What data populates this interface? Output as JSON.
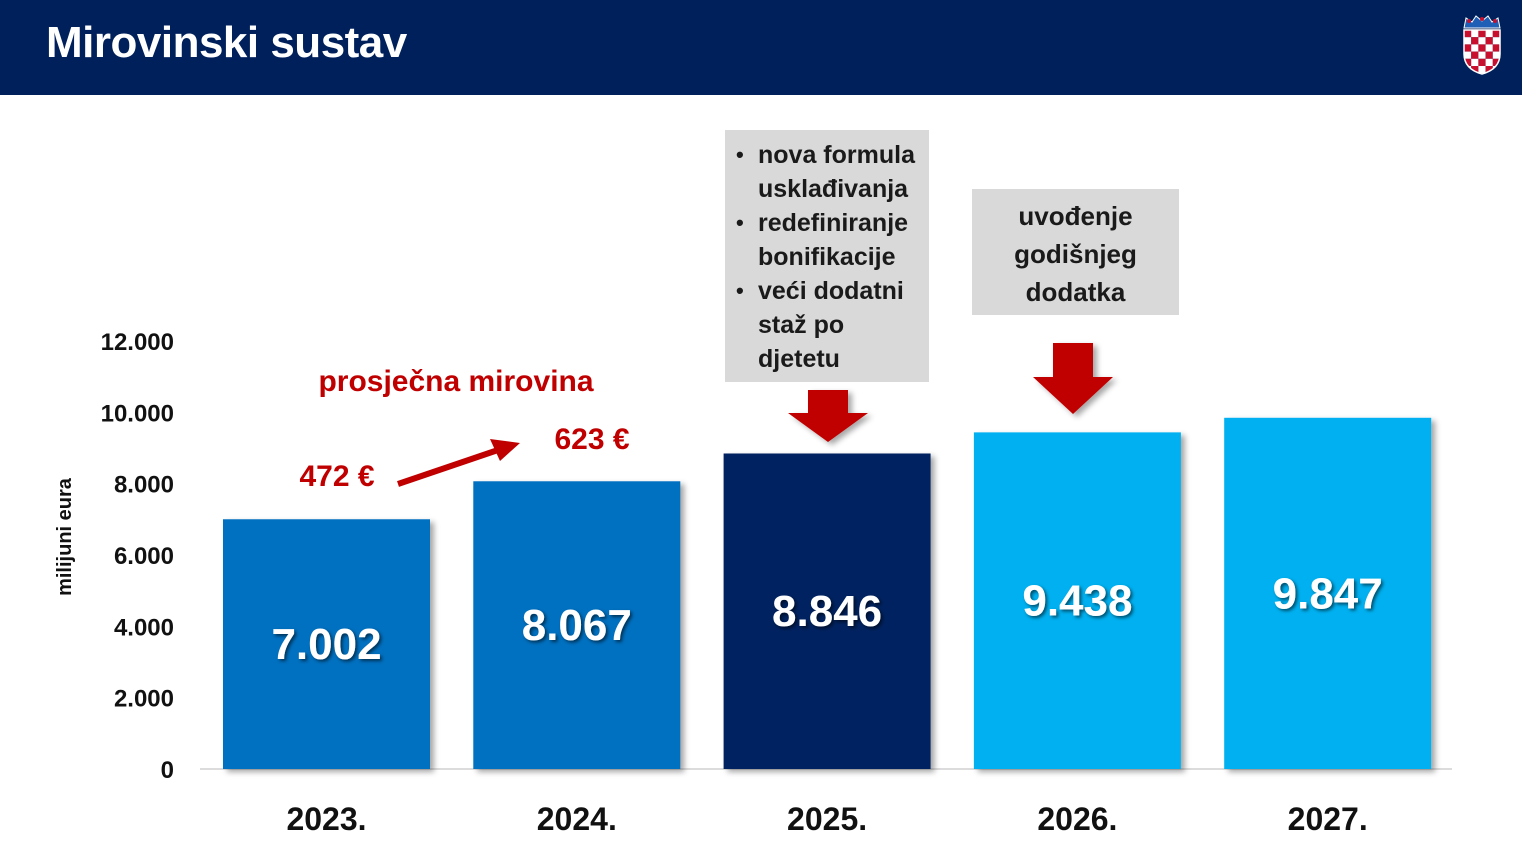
{
  "header": {
    "title": "Mirovinski sustav",
    "emblem": "croatian-coat-of-arms-icon"
  },
  "chart_data": {
    "type": "bar",
    "title": "",
    "xlabel": "",
    "ylabel": "milijuni eura",
    "ylim": [
      0,
      12000
    ],
    "yticks": [
      "0",
      "2.000",
      "4.000",
      "6.000",
      "8.000",
      "10.000",
      "12.000"
    ],
    "categories": [
      "2023.",
      "2024.",
      "2025.",
      "2026.",
      "2027."
    ],
    "values": [
      7002,
      8067,
      8846,
      9438,
      9847
    ],
    "value_labels": [
      "7.002",
      "8.067",
      "8.846",
      "9.438",
      "9.847"
    ],
    "bar_colors": [
      "#0070c0",
      "#0070c0",
      "#002060",
      "#00b0f0",
      "#00b0f0"
    ],
    "grid": false,
    "legend": "none"
  },
  "annotations": {
    "avg_pension_label": "prosječna mirovina",
    "avg_pension_from": "472 €",
    "avg_pension_to": "623 €",
    "note_2025": [
      "nova formula usklađivanja",
      "redefiniranje bonifikacije",
      "veći dodatni staž po djetetu"
    ],
    "note_2026": "uvođenje godišnjeg dodatka"
  },
  "colors": {
    "header": "#00205b",
    "annotation_red": "#c00000",
    "note_bg": "#d9d9d9"
  }
}
